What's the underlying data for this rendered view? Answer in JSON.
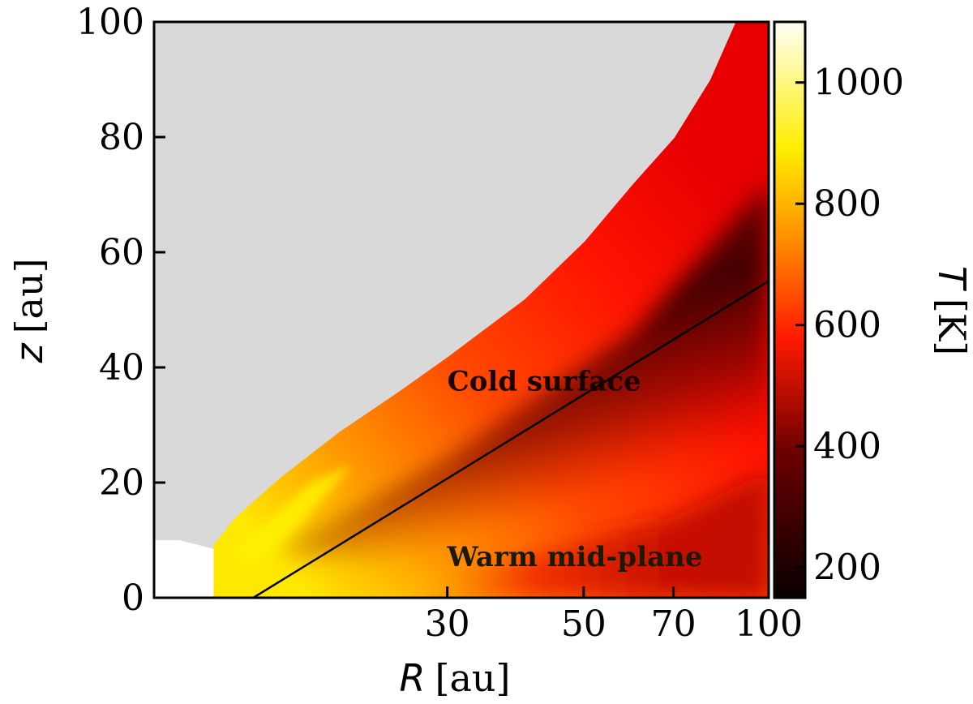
{
  "chart_data": {
    "type": "heatmap",
    "title": "",
    "xlabel_symbol": "R",
    "xlabel_unit": "[au]",
    "ylabel_symbol": "z",
    "ylabel_unit": "[au]",
    "xscale": "log",
    "xlim": [
      10,
      100
    ],
    "ylim": [
      0,
      100
    ],
    "xticks": [
      {
        "value": 30,
        "label": "30"
      },
      {
        "value": 50,
        "label": "50"
      },
      {
        "value": 70,
        "label": "70"
      },
      {
        "value": 100,
        "label": "100"
      }
    ],
    "yticks": [
      {
        "value": 0,
        "label": "0"
      },
      {
        "value": 20,
        "label": "20"
      },
      {
        "value": 40,
        "label": "40"
      },
      {
        "value": 60,
        "label": "60"
      },
      {
        "value": 80,
        "label": "80"
      },
      {
        "value": 100,
        "label": "100"
      }
    ],
    "colorbar": {
      "symbol": "T",
      "unit": "[K]",
      "range": [
        150,
        1100
      ],
      "ticks": [
        {
          "value": 200,
          "label": "200"
        },
        {
          "value": 400,
          "label": "400"
        },
        {
          "value": 600,
          "label": "600"
        },
        {
          "value": 800,
          "label": "800"
        },
        {
          "value": 1000,
          "label": "1000"
        }
      ],
      "colormap": "hot"
    },
    "annotations": [
      {
        "text": "Cold surface",
        "x": 30,
        "z": 36,
        "color": "#1a0000"
      },
      {
        "text": "Warm mid-plane",
        "x": 30,
        "z": 5.5,
        "color": "#1a1a00"
      }
    ],
    "line": {
      "name": "boundary",
      "points": [
        [
          14.5,
          0
        ],
        [
          100,
          55
        ]
      ],
      "color": "#000000"
    },
    "surface_edge": [
      [
        12.5,
        9.5
      ],
      [
        13.5,
        14
      ],
      [
        16,
        21
      ],
      [
        20,
        29
      ],
      [
        25,
        36
      ],
      [
        30,
        42
      ],
      [
        40,
        52
      ],
      [
        50,
        62
      ],
      [
        60,
        72
      ],
      [
        70,
        80
      ],
      [
        80,
        90
      ],
      [
        88,
        100
      ]
    ],
    "masked_color": "#d9d9d9",
    "inner_region_color": "#ffffff"
  }
}
